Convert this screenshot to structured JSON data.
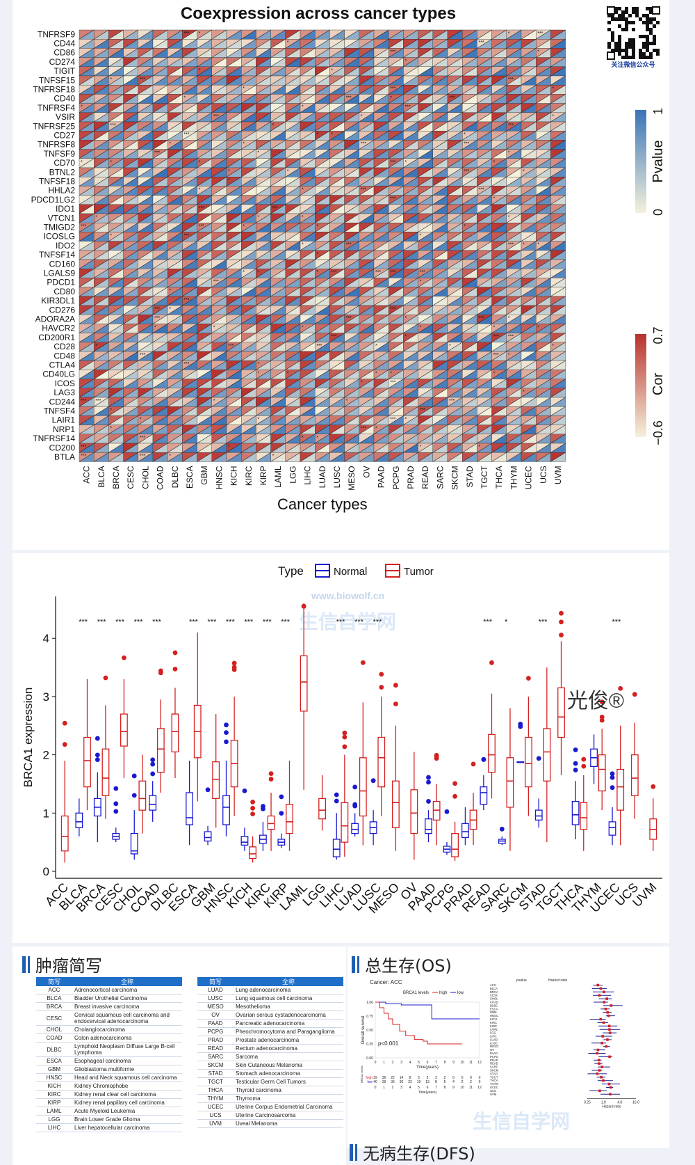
{
  "heatmap": {
    "title": "Coexpression across cancer types",
    "xlabel": "Cancer types",
    "genes": [
      "TNFRSF9",
      "CD44",
      "CD86",
      "CD274",
      "TIGIT",
      "TNFSF15",
      "TNFRSF18",
      "CD40",
      "TNFRSF4",
      "VSIR",
      "TNFRSF25",
      "CD27",
      "TNFRSF8",
      "TNFSF9",
      "CD70",
      "BTNL2",
      "TNFSF18",
      "HHLA2",
      "PDCD1LG2",
      "IDO1",
      "VTCN1",
      "TMIGD2",
      "ICOSLG",
      "IDO2",
      "TNFSF14",
      "CD160",
      "LGALS9",
      "PDCD1",
      "CD80",
      "KIR3DL1",
      "CD276",
      "ADORA2A",
      "HAVCR2",
      "CD200R1",
      "CD28",
      "CD48",
      "CTLA4",
      "CD40LG",
      "ICOS",
      "LAG3",
      "CD244",
      "TNFSF4",
      "LAIR1",
      "NRP1",
      "TNFRSF14",
      "CD200",
      "BTLA"
    ],
    "cancers": [
      "ACC",
      "BLCA",
      "BRCA",
      "CESC",
      "CHOL",
      "COAD",
      "DLBC",
      "ESCA",
      "GBM",
      "HNSC",
      "KICH",
      "KIRC",
      "KIRP",
      "LAML",
      "LGG",
      "LIHC",
      "LUAD",
      "LUSC",
      "MESO",
      "OV",
      "PAAD",
      "PCPG",
      "PRAD",
      "READ",
      "SARC",
      "SKCM",
      "STAD",
      "TGCT",
      "THCA",
      "THYM",
      "UCEC",
      "UCS",
      "UVM"
    ],
    "pvalue_legend": {
      "title": "Pvalue",
      "max": "1",
      "min": "0",
      "color_high": "#3a74b8",
      "color_low": "#f5f1dc"
    },
    "cor_legend": {
      "title": "Cor",
      "max": "0.7",
      "min": "−0.6",
      "color_high": "#b8322e",
      "color_low": "#f5f1dc"
    },
    "qr_caption": "关注微信公众号"
  },
  "chart_data": {
    "type": "box",
    "ylabel": "BRCA1 expression",
    "ylim": [
      0,
      4.6
    ],
    "yticks": [
      0,
      1,
      2,
      3,
      4
    ],
    "legend": {
      "title": "Type",
      "normal": "Normal",
      "tumor": "Tumor",
      "normal_color": "#1a1ad0",
      "tumor_color": "#d42020"
    },
    "categories": [
      "ACC",
      "BLCA",
      "BRCA",
      "CESC",
      "CHOL",
      "COAD",
      "DLBC",
      "ESCA",
      "GBM",
      "HNSC",
      "KICH",
      "KIRC",
      "KIRP",
      "LAML",
      "LGG",
      "LIHC",
      "LUAD",
      "LUSC",
      "MESO",
      "OV",
      "PAAD",
      "PCPG",
      "PRAD",
      "READ",
      "SARC",
      "SKCM",
      "STAD",
      "TGCT",
      "THCA",
      "THYM",
      "UCEC",
      "UCS",
      "UVM"
    ],
    "significance": [
      "",
      "***",
      "***",
      "***",
      "***",
      "***",
      "",
      "***",
      "***",
      "***",
      "***",
      "***",
      "***",
      "",
      "",
      "***",
      "***",
      "***",
      "",
      "",
      "",
      "",
      "",
      "***",
      "*",
      "",
      "***",
      "",
      "",
      "",
      "***",
      "",
      ""
    ],
    "normal": [
      null,
      [
        0.6,
        0.75,
        0.85,
        1.0,
        1.25
      ],
      [
        0.5,
        0.95,
        1.1,
        1.25,
        1.7
      ],
      [
        0.5,
        0.55,
        0.6,
        0.65,
        0.75
      ],
      [
        0.2,
        0.3,
        0.35,
        0.65,
        1.05
      ],
      [
        0.85,
        1.05,
        1.15,
        1.3,
        1.55
      ],
      null,
      [
        0.45,
        0.8,
        0.92,
        1.35,
        1.9
      ],
      [
        0.45,
        0.52,
        0.58,
        0.68,
        0.78
      ],
      [
        0.6,
        0.8,
        1.1,
        1.3,
        1.9
      ],
      [
        0.35,
        0.45,
        0.5,
        0.6,
        0.75
      ],
      [
        0.35,
        0.48,
        0.55,
        0.62,
        0.85
      ],
      [
        0.4,
        0.45,
        0.5,
        0.55,
        0.65
      ],
      null,
      null,
      [
        0.2,
        0.25,
        0.38,
        0.55,
        1.0
      ],
      [
        0.6,
        0.65,
        0.72,
        0.82,
        1.0
      ],
      [
        0.45,
        0.65,
        0.75,
        0.85,
        1.05
      ],
      null,
      null,
      [
        0.5,
        0.65,
        0.72,
        0.9,
        1.05
      ],
      [
        0.28,
        0.33,
        0.38,
        0.43,
        0.5
      ],
      [
        0.45,
        0.58,
        0.68,
        0.82,
        1.1
      ],
      [
        1.05,
        1.15,
        1.35,
        1.45,
        1.65
      ],
      [
        0.45,
        0.48,
        0.52,
        0.55,
        0.6
      ],
      [
        1.87,
        1.87,
        1.87,
        1.88,
        1.88
      ],
      [
        0.75,
        0.88,
        0.95,
        1.05,
        1.25
      ],
      null,
      [
        0.55,
        0.8,
        0.97,
        1.2,
        1.55
      ],
      [
        1.5,
        1.8,
        1.95,
        2.1,
        2.35
      ],
      [
        0.45,
        0.62,
        0.75,
        0.85,
        1.1
      ],
      null,
      null
    ],
    "tumor": [
      [
        0.15,
        0.35,
        0.6,
        0.95,
        1.9
      ],
      [
        1.05,
        1.45,
        1.9,
        2.3,
        3.3
      ],
      [
        0.9,
        1.3,
        1.6,
        2.1,
        2.85
      ],
      [
        1.6,
        2.15,
        2.4,
        2.7,
        3.3
      ],
      [
        0.65,
        1.05,
        1.25,
        1.55,
        2.0
      ],
      [
        1.35,
        1.7,
        2.1,
        2.45,
        2.95
      ],
      [
        1.6,
        2.05,
        2.4,
        2.7,
        3.15
      ],
      [
        1.2,
        1.95,
        2.4,
        2.85,
        4.1
      ],
      [
        0.75,
        1.25,
        1.58,
        1.88,
        2.7
      ],
      [
        0.95,
        1.45,
        1.85,
        2.25,
        3.0
      ],
      [
        0.15,
        0.22,
        0.3,
        0.42,
        0.6
      ],
      [
        0.35,
        0.72,
        0.82,
        0.95,
        1.35
      ],
      [
        0.35,
        0.65,
        0.85,
        1.15,
        1.9
      ],
      [
        1.4,
        2.75,
        3.25,
        3.7,
        4.6
      ],
      [
        0.7,
        0.9,
        1.05,
        1.25,
        1.65
      ],
      [
        0.25,
        0.5,
        0.78,
        1.18,
        2.0
      ],
      [
        0.45,
        0.95,
        1.38,
        1.95,
        2.9
      ],
      [
        0.95,
        1.45,
        1.95,
        2.3,
        3.0
      ],
      [
        0.35,
        0.75,
        1.18,
        1.55,
        2.5
      ],
      [
        0.2,
        0.65,
        1.0,
        1.4,
        2.05
      ],
      [
        0.45,
        0.88,
        1.05,
        1.2,
        1.5
      ],
      [
        0.18,
        0.25,
        0.38,
        0.65,
        0.85
      ],
      [
        0.45,
        0.72,
        0.88,
        1.05,
        1.35
      ],
      [
        1.25,
        1.7,
        2.0,
        2.35,
        3.05
      ],
      [
        0.35,
        1.1,
        1.55,
        1.95,
        2.8
      ],
      [
        0.95,
        1.45,
        1.85,
        2.3,
        3.0
      ],
      [
        0.5,
        1.55,
        2.05,
        2.45,
        3.5
      ],
      [
        1.65,
        2.3,
        2.65,
        3.15,
        3.95
      ],
      [
        0.35,
        0.72,
        0.92,
        1.18,
        1.65
      ],
      [
        1.05,
        1.38,
        1.75,
        2.0,
        2.45
      ],
      [
        0.45,
        1.05,
        1.45,
        1.75,
        2.5
      ],
      [
        0.9,
        1.3,
        1.6,
        2.0,
        2.55
      ],
      [
        0.35,
        0.55,
        0.72,
        0.9,
        1.25
      ]
    ]
  },
  "abbr_section": {
    "title": "肿瘤简写",
    "header_abbr": "简写",
    "header_full": "全称",
    "left": [
      [
        "ACC",
        "Adrenocortical carcinoma"
      ],
      [
        "BLCA",
        "Bladder Urothelial Carcinoma"
      ],
      [
        "BRCA",
        "Breast invasive carcinoma"
      ],
      [
        "CESC",
        "Cervical squamous cell carcinoma and endocervical adenocarcinoma"
      ],
      [
        "CHOL",
        "Cholangiocarcinoma"
      ],
      [
        "COAD",
        "Colon adenocarcinoma"
      ],
      [
        "DLBC",
        "Lymphoid Neoplasm Diffuse Large B-cell Lymphoma"
      ],
      [
        "ESCA",
        "Esophageal carcinoma"
      ],
      [
        "GBM",
        "Glioblastoma multiforme"
      ],
      [
        "HNSC",
        "Head and Neck squamous cell carcinoma"
      ],
      [
        "KICH",
        "Kidney Chromophobe"
      ],
      [
        "KIRC",
        "Kidney renal clear cell carcinoma"
      ],
      [
        "KIRP",
        "Kidney renal papillary cell carcinoma"
      ],
      [
        "LAML",
        "Acute Myeloid Leukemia"
      ],
      [
        "LGG",
        "Brain Lower Grade Glioma"
      ],
      [
        "LIHC",
        "Liver hepatocellular carcinoma"
      ]
    ],
    "right": [
      [
        "LUAD",
        "Lung adenocarcinoma"
      ],
      [
        "LUSC",
        "Lung squamous cell carcinoma"
      ],
      [
        "MESO",
        "Mesothelioma"
      ],
      [
        "OV",
        "Ovarian serous cystadenocarcinoma"
      ],
      [
        "PAAD",
        "Pancreatic adenocarcinoma"
      ],
      [
        "PCPG",
        "Pheochromocytoma and Paraganglioma"
      ],
      [
        "PRAD",
        "Prostate adenocarcinoma"
      ],
      [
        "READ",
        "Rectum adenocarcinoma"
      ],
      [
        "SARC",
        "Sarcoma"
      ],
      [
        "SKCM",
        "Skin Cutaneous Melanoma"
      ],
      [
        "STAD",
        "Stomach adenocarcinoma"
      ],
      [
        "TGCT",
        "Testicular Germ Cell Tumors"
      ],
      [
        "THCA",
        "Thyroid carcinoma"
      ],
      [
        "THYM",
        "Thymoma"
      ],
      [
        "UCEC",
        "Uterine Corpus Endometrial Carcinoma"
      ],
      [
        "UCS",
        "Uterine Carcinosarcoma"
      ],
      [
        "UVM",
        "Uveal Melanoma"
      ]
    ]
  },
  "os_section": {
    "title": "总生存(OS)",
    "km": {
      "cancer": "Cancer: ACC",
      "legend_title": "BRCA1 levels",
      "high": "high",
      "low": "low",
      "pvalue": "p<0.001",
      "xlabel": "Time(years)",
      "ylabel": "Overall survival",
      "risk_label": "BRCA1 levels",
      "yticks": [
        "0.00",
        "0.25",
        "0.50",
        "0.75",
        "1.00"
      ],
      "xticks": [
        "0",
        "1",
        "2",
        "3",
        "4",
        "5",
        "6",
        "7",
        "8",
        "9",
        "10",
        "11",
        "12"
      ],
      "risk_high": [
        "39",
        "36",
        "22",
        "14",
        "8",
        "5",
        "3",
        "3",
        "2",
        "0",
        "0",
        "0",
        "0"
      ],
      "risk_low": [
        "40",
        "39",
        "36",
        "30",
        "22",
        "19",
        "13",
        "8",
        "5",
        "4",
        "2",
        "2",
        "0"
      ]
    },
    "forest": {
      "col_pvalue": "pvalue",
      "col_hr": "Hazard ratio",
      "xlabel": "Hazard ratio",
      "xticks": [
        "0.25",
        "1.0",
        "4.0",
        "16.0"
      ]
    }
  },
  "dfs_section": {
    "title": "无病生存(DFS)"
  },
  "watermark": "生信自学网",
  "watermark_url": "www.biowolf.cn",
  "signature": "光俊®"
}
